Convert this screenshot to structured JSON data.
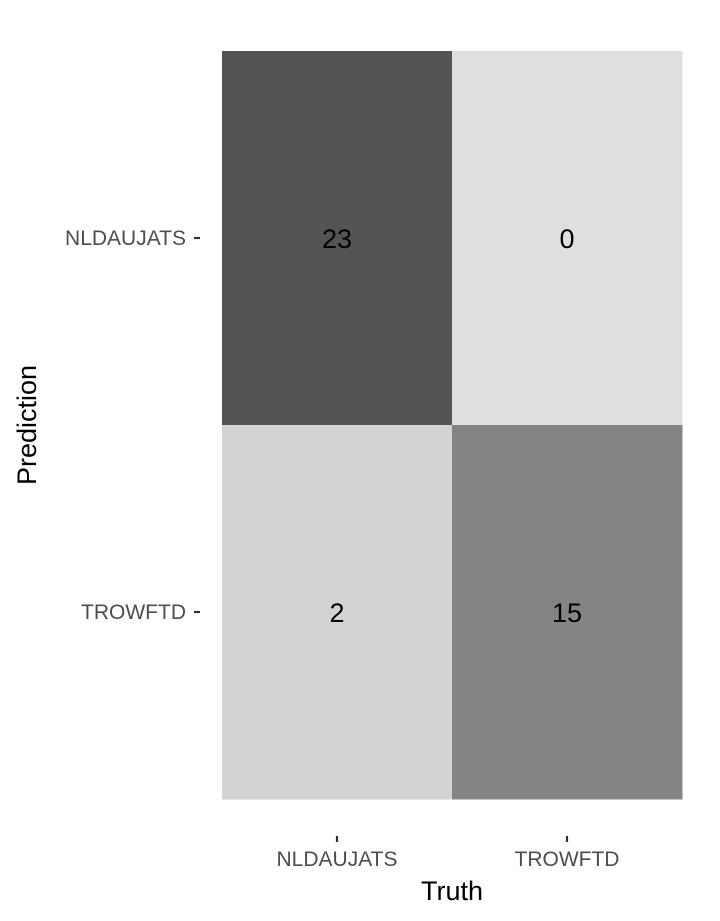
{
  "chart_data": {
    "type": "heatmap",
    "title": "",
    "xlabel": "Truth",
    "ylabel": "Prediction",
    "x_categories": [
      "NLDAUJATS",
      "TROWFTD"
    ],
    "y_categories": [
      "NLDAUJATS",
      "TROWFTD"
    ],
    "cells": [
      {
        "prediction": "NLDAUJATS",
        "truth": "NLDAUJATS",
        "value": 23,
        "label": "23"
      },
      {
        "prediction": "NLDAUJATS",
        "truth": "TROWFTD",
        "value": 0,
        "label": "0"
      },
      {
        "prediction": "TROWFTD",
        "truth": "NLDAUJATS",
        "value": 2,
        "label": "2"
      },
      {
        "prediction": "TROWFTD",
        "truth": "TROWFTD",
        "value": 15,
        "label": "15"
      }
    ],
    "color_scale": {
      "low": "#dfdfdf",
      "high": "#545454"
    },
    "legend": "none",
    "grid": false
  }
}
